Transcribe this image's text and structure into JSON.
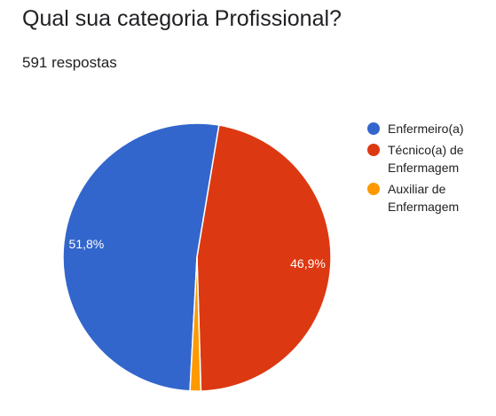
{
  "question": {
    "title": "Qual sua categoria Profissional?",
    "response_count": "591 respostas"
  },
  "chart_data": {
    "type": "pie",
    "title": "Qual sua categoria Profissional?",
    "categories": [
      "Enfermeiro(a)",
      "Técnico(a) de Enfermagem",
      "Auxiliar de Enfermagem"
    ],
    "values": [
      51.8,
      46.9,
      1.3
    ],
    "data_labels": [
      "51,8%",
      "46,9%",
      ""
    ],
    "colors": [
      "#3366cc",
      "#dc3912",
      "#ff9900"
    ],
    "legend_position": "right"
  }
}
